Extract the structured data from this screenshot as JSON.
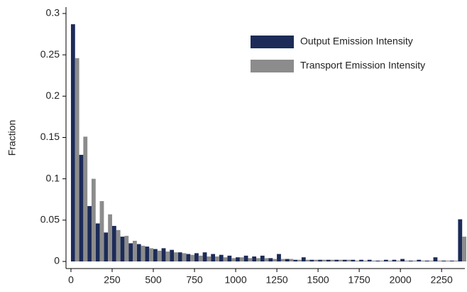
{
  "chart_data": {
    "type": "histogram",
    "y_label": "Fraction",
    "bins": [
      0,
      50,
      100,
      150,
      200,
      250,
      300,
      350,
      400,
      450,
      500,
      550,
      600,
      650,
      700,
      750,
      800,
      850,
      900,
      950,
      1000,
      1050,
      1100,
      1150,
      1200,
      1250,
      1300,
      1350,
      1400,
      1450,
      1500,
      1550,
      1600,
      1650,
      1700,
      1750,
      1800,
      1850,
      1900,
      1950,
      2000,
      2050,
      2100,
      2150,
      2200,
      2250,
      2300,
      2350,
      2400
    ],
    "series": [
      {
        "name": "Output Emission Intensity",
        "color": "#1c2b58",
        "values": [
          0.287,
          0.129,
          0.067,
          0.046,
          0.035,
          0.043,
          0.03,
          0.022,
          0.021,
          0.018,
          0.015,
          0.016,
          0.014,
          0.011,
          0.009,
          0.01,
          0.011,
          0.009,
          0.008,
          0.007,
          0.005,
          0.007,
          0.006,
          0.007,
          0.004,
          0.009,
          0.003,
          0.002,
          0.005,
          0.002,
          0.002,
          0.002,
          0.002,
          0.002,
          0.002,
          0.002,
          0.002,
          0.001,
          0.002,
          0.002,
          0.003,
          0.001,
          0.002,
          0.001,
          0.005,
          0.001,
          0.001,
          0.051
        ]
      },
      {
        "name": "Transport Emission Intensity",
        "color": "#8c8c8c",
        "values": [
          0.246,
          0.151,
          0.1,
          0.073,
          0.057,
          0.038,
          0.031,
          0.025,
          0.019,
          0.016,
          0.013,
          0.012,
          0.011,
          0.01,
          0.008,
          0.007,
          0.006,
          0.006,
          0.005,
          0.004,
          0.005,
          0.004,
          0.004,
          0.004,
          0.003,
          0.003,
          0.003,
          0.002,
          0.002,
          0.002,
          0.002,
          0.002,
          0.002,
          0.002,
          0.001,
          0.001,
          0.001,
          0.001,
          0.001,
          0.001,
          0.001,
          0.001,
          0.001,
          0.001,
          0.001,
          0.001,
          0.001,
          0.03
        ]
      }
    ],
    "xlim": [
      -30,
      2400
    ],
    "ylim": [
      0,
      0.3
    ],
    "xticks": [
      0,
      250,
      500,
      750,
      1000,
      1250,
      1500,
      1750,
      2000,
      2250
    ],
    "yticks": [
      0,
      0.05,
      0.1,
      0.15,
      0.2,
      0.25,
      0.3
    ],
    "legend": "top-right"
  }
}
